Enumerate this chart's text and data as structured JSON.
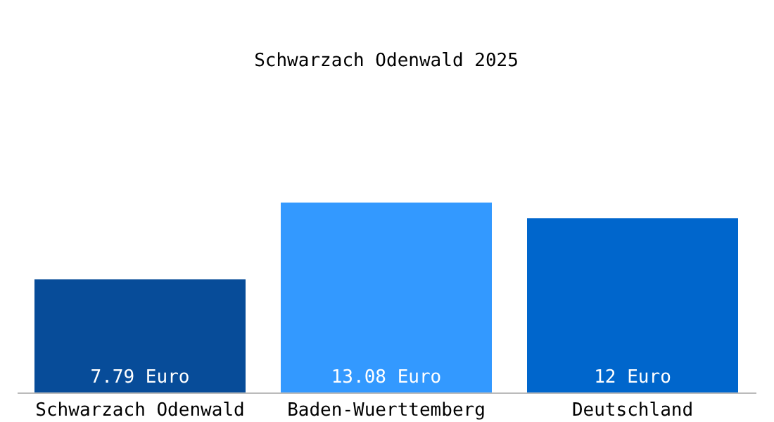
{
  "chart_data": {
    "type": "bar",
    "title": "Schwarzach Odenwald 2025",
    "categories": [
      "Schwarzach Odenwald",
      "Baden-Wuerttemberg",
      "Deutschland"
    ],
    "values": [
      7.79,
      13.08,
      12
    ],
    "colors": [
      "#074c99",
      "#3399ff",
      "#0066cc"
    ],
    "value_labels": [
      "7.79 Euro",
      "13.08 Euro",
      "12 Euro"
    ],
    "legend": false,
    "grid": false
  }
}
